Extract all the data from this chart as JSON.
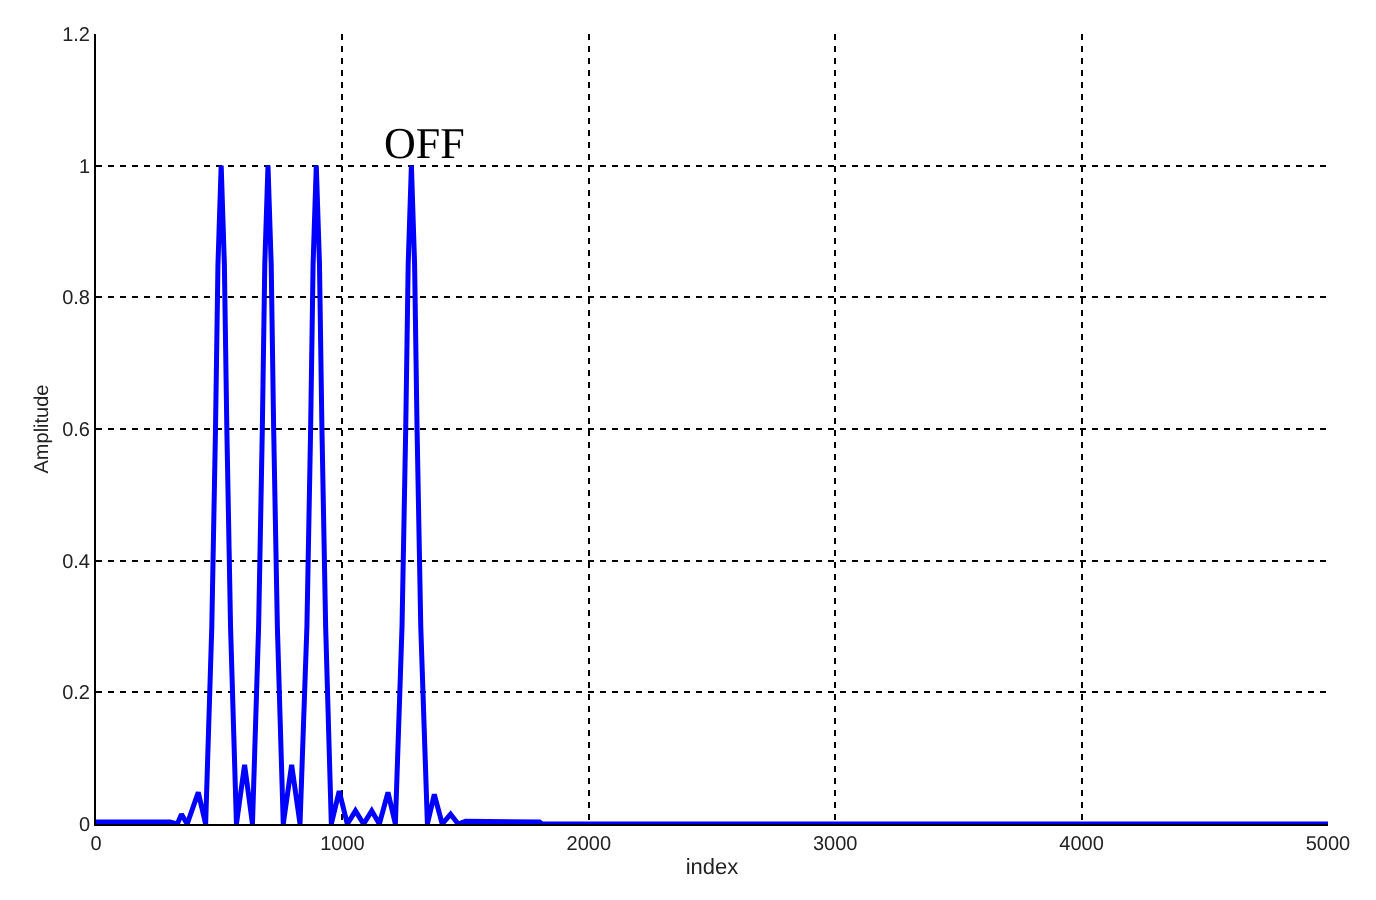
{
  "chart_data": {
    "type": "line",
    "xlabel": "index",
    "ylabel": "Amplitude",
    "annotations": [
      "OFF"
    ],
    "x": [
      0,
      300,
      330,
      347,
      370,
      415,
      445,
      470,
      485,
      495,
      508,
      521,
      531,
      546,
      570,
      603,
      635,
      660,
      675,
      685,
      698,
      711,
      721,
      736,
      760,
      794,
      828,
      856,
      871,
      881,
      894,
      907,
      917,
      932,
      955,
      987,
      1020,
      1053,
      1086,
      1119,
      1150,
      1185,
      1215,
      1242,
      1257,
      1267,
      1280,
      1293,
      1303,
      1318,
      1345,
      1373,
      1405,
      1439,
      1470,
      1500,
      1800,
      1810,
      5000
    ],
    "series": [
      {
        "color": "#0000ff",
        "values": [
          0.003,
          0.003,
          0,
          0.015,
          0,
          0.048,
          0,
          0.3,
          0.6,
          0.85,
          1,
          0.85,
          0.6,
          0.3,
          0,
          0.09,
          0,
          0.3,
          0.6,
          0.85,
          1,
          0.85,
          0.6,
          0.3,
          0,
          0.09,
          0,
          0.3,
          0.6,
          0.85,
          1,
          0.85,
          0.6,
          0.3,
          0,
          0.05,
          0,
          0.02,
          0,
          0.02,
          0,
          0.048,
          0,
          0.3,
          0.6,
          0.85,
          1,
          0.85,
          0.6,
          0.3,
          0,
          0.045,
          0,
          0.015,
          0,
          0.004,
          0.003,
          0,
          0
        ]
      }
    ],
    "xlim": [
      0,
      5000
    ],
    "xticks": [
      0,
      1000,
      2000,
      3000,
      4000,
      5000
    ],
    "ylim": [
      0,
      1.2
    ],
    "yticks": [
      0,
      0.2,
      0.4,
      0.6,
      0.8,
      1,
      1.2
    ],
    "grid": true,
    "line_style": "solid",
    "marker": "none"
  }
}
